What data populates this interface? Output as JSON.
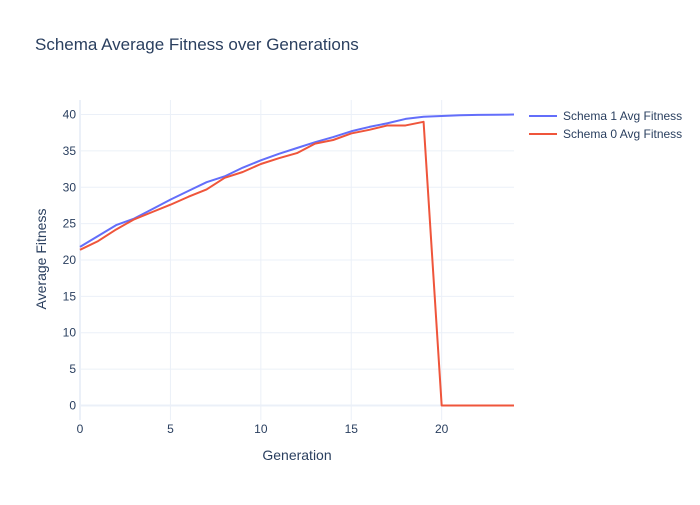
{
  "chart_data": {
    "type": "line",
    "title": "Schema Average Fitness over Generations",
    "xlabel": "Generation",
    "ylabel": "Average Fitness",
    "xlim": [
      0,
      24
    ],
    "ylim": [
      -2,
      42
    ],
    "xticks": [
      0,
      5,
      10,
      15,
      20
    ],
    "yticks": [
      0,
      5,
      10,
      15,
      20,
      25,
      30,
      35,
      40
    ],
    "grid": true,
    "legend_position": "top-right",
    "series": [
      {
        "name": "Schema 1 Avg Fitness",
        "color": "#636efa",
        "x": [
          0,
          1,
          2,
          3,
          4,
          5,
          6,
          7,
          8,
          9,
          10,
          11,
          12,
          13,
          14,
          15,
          16,
          17,
          18,
          19,
          20,
          21,
          22,
          23,
          24
        ],
        "y": [
          21.8,
          23.3,
          24.8,
          25.7,
          27.0,
          28.3,
          29.5,
          30.7,
          31.5,
          32.7,
          33.7,
          34.6,
          35.4,
          36.2,
          36.9,
          37.7,
          38.3,
          38.8,
          39.4,
          39.7,
          39.8,
          39.9,
          39.95,
          39.97,
          40.0
        ]
      },
      {
        "name": "Schema 0 Avg Fitness",
        "color": "#ef553b",
        "x": [
          0,
          1,
          2,
          3,
          4,
          5,
          6,
          7,
          8,
          9,
          10,
          11,
          12,
          13,
          14,
          15,
          16,
          17,
          18,
          19,
          20,
          21,
          22,
          23,
          24
        ],
        "y": [
          21.4,
          22.6,
          24.2,
          25.6,
          26.6,
          27.6,
          28.7,
          29.7,
          31.3,
          32.1,
          33.2,
          34.0,
          34.7,
          36.0,
          36.5,
          37.4,
          37.9,
          38.5,
          38.5,
          39.0,
          0,
          0,
          0,
          0,
          0
        ]
      }
    ]
  }
}
